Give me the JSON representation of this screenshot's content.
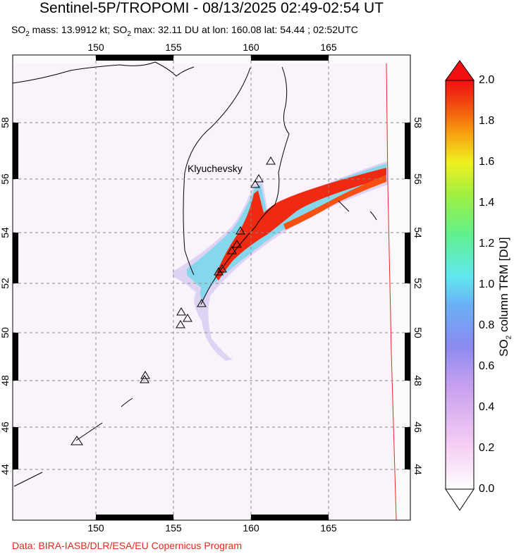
{
  "header": {
    "title": "Sentinel-5P/TROPOMI - 08/13/2025 02:49-02:54 UT",
    "subtitle_parts": [
      "SO",
      "2",
      " mass: 13.9912 kt; SO",
      "2",
      " max: 32.11 DU at lon: 160.08 lat: 54.44 ; 02:52UTC"
    ]
  },
  "map": {
    "lon_ticks": [
      "150",
      "155",
      "160",
      "165"
    ],
    "lat_ticks": [
      "44",
      "46",
      "48",
      "50",
      "52",
      "54",
      "56",
      "58"
    ],
    "volcano_label": "Klyuchevsky",
    "grid": true,
    "grid_style": "dashed"
  },
  "colorbar": {
    "ticks": [
      "0.0",
      "0.2",
      "0.4",
      "0.6",
      "0.8",
      "1.0",
      "1.2",
      "1.4",
      "1.6",
      "1.8",
      "2.0"
    ],
    "label_parts": [
      "SO",
      "2",
      " column TRM [DU]"
    ],
    "min": 0.0,
    "max": 2.0,
    "colors": [
      "#ffffff",
      "#f8d0f4",
      "#c8a0f0",
      "#8a8af0",
      "#6ab0f5",
      "#60e8f0",
      "#60f090",
      "#a0f040",
      "#f0f020",
      "#f8a010",
      "#f04010",
      "#f01010"
    ]
  },
  "footer": {
    "credit": "Data: BIRA-IASB/DLR/ESA/EU Copernicus Program"
  }
}
